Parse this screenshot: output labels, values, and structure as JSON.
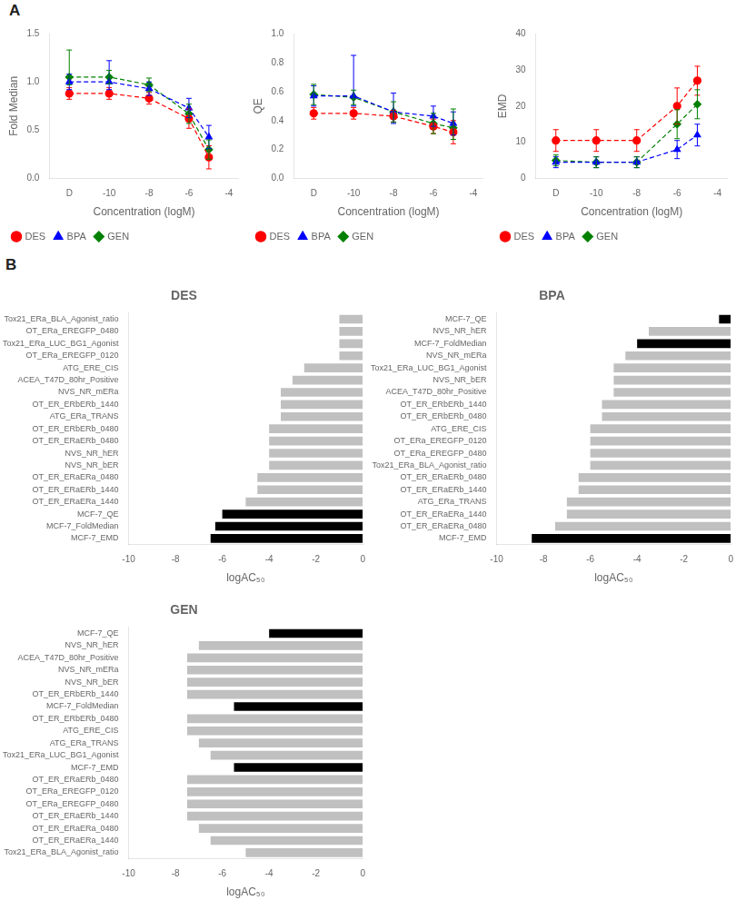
{
  "chart_data": [
    {
      "type": "line",
      "annotations": [
        "A"
      ],
      "x": [
        -12,
        -10,
        -8,
        -6,
        -5
      ],
      "xlabel": "Concentration (logM)",
      "ylabel": "Fold Median",
      "xlim": [
        -13,
        -3.5
      ],
      "xticks": [
        {
          "value": -12,
          "label": "D"
        },
        -10,
        -8,
        -6,
        -4
      ],
      "ylim": [
        0.0,
        1.5
      ],
      "yticks": [
        {
          "value": 0.0,
          "label": "0.0"
        },
        0.5,
        {
          "value": 1.0,
          "label": "1.0"
        },
        1.5
      ],
      "grid": false,
      "legend": "lower left",
      "series": [
        {
          "name": "DES",
          "color": "#FF0000",
          "marker": "circle",
          "line_style": "dashed",
          "values": [
            0.88,
            0.88,
            0.83,
            0.62,
            0.22
          ],
          "yerr_lo": [
            0.06,
            0.06,
            0.06,
            0.1,
            0.12
          ],
          "yerr_hi": [
            0.06,
            0.06,
            0.06,
            0.1,
            0.12
          ]
        },
        {
          "name": "BPA",
          "color": "#0000FF",
          "marker": "triangle",
          "line_style": "dashed",
          "values": [
            1.0,
            1.0,
            0.93,
            0.73,
            0.43
          ],
          "yerr_lo": [
            0.08,
            0.08,
            0.07,
            0.1,
            0.12
          ],
          "yerr_hi": [
            0.08,
            0.22,
            0.07,
            0.1,
            0.12
          ]
        },
        {
          "name": "GEN",
          "color": "#008000",
          "marker": "diamond",
          "line_style": "dashed",
          "values": [
            1.05,
            1.05,
            0.97,
            0.67,
            0.3
          ],
          "yerr_lo": [
            0.08,
            0.07,
            0.07,
            0.1,
            0.1
          ],
          "yerr_hi": [
            0.28,
            0.07,
            0.07,
            0.1,
            0.1
          ]
        }
      ]
    },
    {
      "type": "line",
      "x": [
        -12,
        -10,
        -8,
        -6,
        -5
      ],
      "xlabel": "Concentration (logM)",
      "ylabel": "QE",
      "xlim": [
        -13,
        -3.5
      ],
      "xticks": [
        {
          "value": -12,
          "label": "D"
        },
        -10,
        -8,
        -6,
        -4
      ],
      "ylim": [
        0.0,
        1.0
      ],
      "yticks": [
        {
          "value": 0.0,
          "label": "0.0"
        },
        0.2,
        0.4,
        0.6,
        0.8,
        {
          "value": 1.0,
          "label": "1.0"
        }
      ],
      "grid": false,
      "legend": "lower left",
      "series": [
        {
          "name": "DES",
          "color": "#FF0000",
          "marker": "circle",
          "line_style": "dashed",
          "values": [
            0.45,
            0.45,
            0.43,
            0.36,
            0.32
          ],
          "yerr_lo": [
            0.04,
            0.04,
            0.04,
            0.05,
            0.08
          ],
          "yerr_hi": [
            0.04,
            0.04,
            0.04,
            0.05,
            0.08
          ]
        },
        {
          "name": "BPA",
          "color": "#0000FF",
          "marker": "triangle",
          "line_style": "dashed",
          "values": [
            0.57,
            0.57,
            0.46,
            0.43,
            0.38
          ],
          "yerr_lo": [
            0.07,
            0.07,
            0.08,
            0.07,
            0.08
          ],
          "yerr_hi": [
            0.07,
            0.28,
            0.13,
            0.07,
            0.08
          ]
        },
        {
          "name": "GEN",
          "color": "#008000",
          "marker": "diamond",
          "line_style": "dashed",
          "values": [
            0.58,
            0.56,
            0.46,
            0.38,
            0.35
          ],
          "yerr_lo": [
            0.07,
            0.05,
            0.07,
            0.07,
            0.08
          ],
          "yerr_hi": [
            0.07,
            0.05,
            0.07,
            0.07,
            0.13
          ]
        }
      ]
    },
    {
      "type": "line",
      "x": [
        -12,
        -10,
        -8,
        -6,
        -5
      ],
      "xlabel": "Concentration (logM)",
      "ylabel": "EMD",
      "xlim": [
        -13,
        -3.5
      ],
      "xticks": [
        {
          "value": -12,
          "label": "D"
        },
        -10,
        -8,
        -6,
        -4
      ],
      "ylim": [
        0,
        40
      ],
      "yticks": [
        0,
        10,
        20,
        30,
        40
      ],
      "grid": false,
      "legend": "lower left",
      "series": [
        {
          "name": "DES",
          "color": "#FF0000",
          "marker": "circle",
          "line_style": "dashed",
          "values": [
            10.5,
            10.5,
            10.5,
            20.0,
            27.0
          ],
          "yerr_lo": [
            3.0,
            3.0,
            3.0,
            5.0,
            4.0
          ],
          "yerr_hi": [
            3.0,
            3.0,
            3.0,
            5.0,
            4.0
          ]
        },
        {
          "name": "BPA",
          "color": "#0000FF",
          "marker": "triangle",
          "line_style": "dashed",
          "values": [
            4.5,
            4.5,
            4.5,
            8.0,
            12.0
          ],
          "yerr_lo": [
            1.5,
            1.5,
            1.5,
            2.5,
            3.0
          ],
          "yerr_hi": [
            1.5,
            1.5,
            1.5,
            2.5,
            3.0
          ]
        },
        {
          "name": "GEN",
          "color": "#008000",
          "marker": "diamond",
          "line_style": "dashed",
          "values": [
            5.0,
            4.5,
            4.5,
            15.0,
            20.5
          ],
          "yerr_lo": [
            1.5,
            1.5,
            1.5,
            4.0,
            4.0
          ],
          "yerr_hi": [
            1.5,
            1.5,
            1.5,
            4.0,
            4.0
          ]
        }
      ]
    },
    {
      "type": "bar",
      "orientation": "horizontal",
      "annotations": [
        "B"
      ],
      "title": "DES",
      "categories": [
        "Tox21_ERa_BLA_Agonist_ratio",
        "OT_ERa_EREGFP_0480",
        "Tox21_ERa_LUC_BG1_Agonist",
        "OT_ERa_EREGFP_0120",
        "ATG_ERE_CIS",
        "ACEA_T47D_80hr_Positive",
        "NVS_NR_mERa",
        "OT_ER_ERbERb_1440",
        "ATG_ERa_TRANS",
        "OT_ER_ERbERb_0480",
        "OT_ER_ERaERb_0480",
        "NVS_NR_hER",
        "NVS_NR_bER",
        "OT_ER_ERaERa_0480",
        "OT_ER_ERaERb_1440",
        "OT_ER_ERaERa_1440",
        "MCF-7_QE",
        "MCF-7_FoldMedian",
        "MCF-7_EMD"
      ],
      "values": [
        -1.0,
        -1.0,
        -1.0,
        -1.0,
        -2.5,
        -3.0,
        -3.5,
        -3.5,
        -3.5,
        -4.0,
        -4.0,
        -4.0,
        -4.0,
        -4.5,
        -4.5,
        -5.0,
        -6.0,
        -6.3,
        -6.5
      ],
      "colors": [
        "#C0C0C0",
        "#C0C0C0",
        "#C0C0C0",
        "#C0C0C0",
        "#C0C0C0",
        "#C0C0C0",
        "#C0C0C0",
        "#C0C0C0",
        "#C0C0C0",
        "#C0C0C0",
        "#C0C0C0",
        "#C0C0C0",
        "#C0C0C0",
        "#C0C0C0",
        "#C0C0C0",
        "#C0C0C0",
        "#000000",
        "#000000",
        "#000000"
      ],
      "xlabel": "logAC₅₀",
      "xlim": [
        -10,
        0
      ],
      "xticks": [
        -10,
        -8,
        -6,
        -4,
        -2,
        0
      ],
      "grid": false
    },
    {
      "type": "bar",
      "orientation": "horizontal",
      "title": "BPA",
      "categories": [
        "MCF-7_QE",
        "NVS_NR_hER",
        "MCF-7_FoldMedian",
        "NVS_NR_mERa",
        "Tox21_ERa_LUC_BG1_Agonist",
        "NVS_NR_bER",
        "ACEA_T47D_80hr_Positive",
        "OT_ER_ERbERb_1440",
        "OT_ER_ERbERb_0480",
        "ATG_ERE_CIS",
        "OT_ERa_EREGFP_0120",
        "OT_ERa_EREGFP_0480",
        "Tox21_ERa_BLA_Agonist_ratio",
        "OT_ER_ERaERb_0480",
        "OT_ER_ERaERb_1440",
        "ATG_ERa_TRANS",
        "OT_ER_ERaERa_1440",
        "OT_ER_ERaERa_0480",
        "MCF-7_EMD"
      ],
      "values": [
        -0.5,
        -3.5,
        -4.0,
        -4.5,
        -5.0,
        -5.0,
        -5.0,
        -5.5,
        -5.5,
        -6.0,
        -6.0,
        -6.0,
        -6.0,
        -6.5,
        -6.5,
        -7.0,
        -7.0,
        -7.5,
        -8.5
      ],
      "colors": [
        "#000000",
        "#C0C0C0",
        "#000000",
        "#C0C0C0",
        "#C0C0C0",
        "#C0C0C0",
        "#C0C0C0",
        "#C0C0C0",
        "#C0C0C0",
        "#C0C0C0",
        "#C0C0C0",
        "#C0C0C0",
        "#C0C0C0",
        "#C0C0C0",
        "#C0C0C0",
        "#C0C0C0",
        "#C0C0C0",
        "#C0C0C0",
        "#000000"
      ],
      "xlabel": "logAC₅₀",
      "xlim": [
        -10,
        0
      ],
      "xticks": [
        -10,
        -8,
        -6,
        -4,
        -2,
        0
      ],
      "grid": false
    },
    {
      "type": "bar",
      "orientation": "horizontal",
      "title": "GEN",
      "categories": [
        "MCF-7_QE",
        "NVS_NR_hER",
        "ACEA_T47D_80hr_Positive",
        "NVS_NR_mERa",
        "NVS_NR_bER",
        "OT_ER_ERbERb_1440",
        "MCF-7_FoldMedian",
        "OT_ER_ERbERb_0480",
        "ATG_ERE_CIS",
        "ATG_ERa_TRANS",
        "Tox21_ERa_LUC_BG1_Agonist",
        "MCF-7_EMD",
        "OT_ER_ERaERb_0480",
        "OT_ERa_EREGFP_0120",
        "OT_ERa_EREGFP_0480",
        "OT_ER_ERaERb_1440",
        "OT_ER_ERaERa_0480",
        "OT_ER_ERaERa_1440",
        "Tox21_ERa_BLA_Agonist_ratio"
      ],
      "values": [
        -4.0,
        -7.0,
        -7.5,
        -7.5,
        -7.5,
        -7.5,
        -5.5,
        -7.5,
        -7.5,
        -7.0,
        -6.5,
        -5.5,
        -7.5,
        -7.5,
        -7.5,
        -7.5,
        -7.0,
        -6.5,
        -5.0
      ],
      "colors": [
        "#000000",
        "#C0C0C0",
        "#C0C0C0",
        "#C0C0C0",
        "#C0C0C0",
        "#C0C0C0",
        "#000000",
        "#C0C0C0",
        "#C0C0C0",
        "#C0C0C0",
        "#C0C0C0",
        "#000000",
        "#C0C0C0",
        "#C0C0C0",
        "#C0C0C0",
        "#C0C0C0",
        "#C0C0C0",
        "#C0C0C0",
        "#C0C0C0"
      ],
      "xlabel": "logAC₅₀",
      "xlim": [
        -10,
        0
      ],
      "xticks": [
        -10,
        -8,
        -6,
        -4,
        -2,
        0
      ],
      "grid": false
    }
  ]
}
